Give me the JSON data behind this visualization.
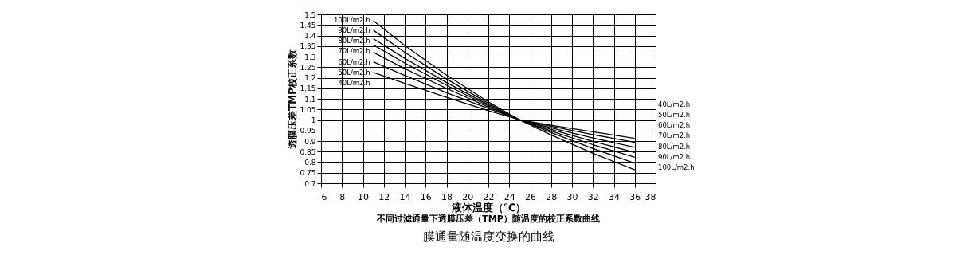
{
  "chart_data": {
    "type": "line",
    "title": "不同过滤通量下透膜压差（TMP）随温度的校正系数曲线",
    "subtitle": "膜通量随温度变换的曲线",
    "xlabel": "液体温度（℃）",
    "ylabel": "透膜压差TMP校正系数",
    "x": [
      11,
      14,
      18,
      22,
      25,
      28,
      32,
      36
    ],
    "series": [
      {
        "name": "100L/m2.h",
        "color": "#000000",
        "values": [
          1.47,
          1.353,
          1.212,
          1.086,
          1,
          0.929,
          0.842,
          0.764
        ]
      },
      {
        "name": "90L/m2.h",
        "color": "#000000",
        "values": [
          1.425,
          1.321,
          1.194,
          1.079,
          1,
          0.94,
          0.865,
          0.795
        ]
      },
      {
        "name": "80L/m2.h",
        "color": "#000000",
        "values": [
          1.385,
          1.292,
          1.177,
          1.072,
          1,
          0.948,
          0.883,
          0.823
        ]
      },
      {
        "name": "70L/m2.h",
        "color": "#000000",
        "values": [
          1.355,
          1.27,
          1.164,
          1.067,
          1,
          0.955,
          0.899,
          0.846
        ]
      },
      {
        "name": "60L/m2.h",
        "color": "#000000",
        "values": [
          1.32,
          1.243,
          1.149,
          1.061,
          1,
          0.963,
          0.915,
          0.87
        ]
      },
      {
        "name": "50L/m2.h",
        "color": "#000000",
        "values": [
          1.275,
          1.211,
          1.129,
          1.054,
          1,
          0.97,
          0.931,
          0.894
        ]
      },
      {
        "name": "40L/m2.h",
        "color": "#000000",
        "values": [
          1.225,
          1.173,
          1.107,
          1.044,
          1,
          0.975,
          0.944,
          0.913
        ]
      }
    ],
    "xlim": [
      6,
      38
    ],
    "xticks": [
      6,
      8,
      10,
      12,
      14,
      16,
      18,
      20,
      22,
      24,
      26,
      28,
      30,
      32,
      34,
      36,
      38
    ],
    "ylim": [
      0.7,
      1.5
    ],
    "yticks": [
      0.7,
      0.75,
      0.8,
      0.85,
      0.9,
      0.95,
      1,
      1.05,
      1.1,
      1.15,
      1.2,
      1.25,
      1.3,
      1.35,
      1.4,
      1.45,
      1.5
    ],
    "grid": true,
    "legend": false,
    "marker": "none",
    "line_style": "solid"
  }
}
